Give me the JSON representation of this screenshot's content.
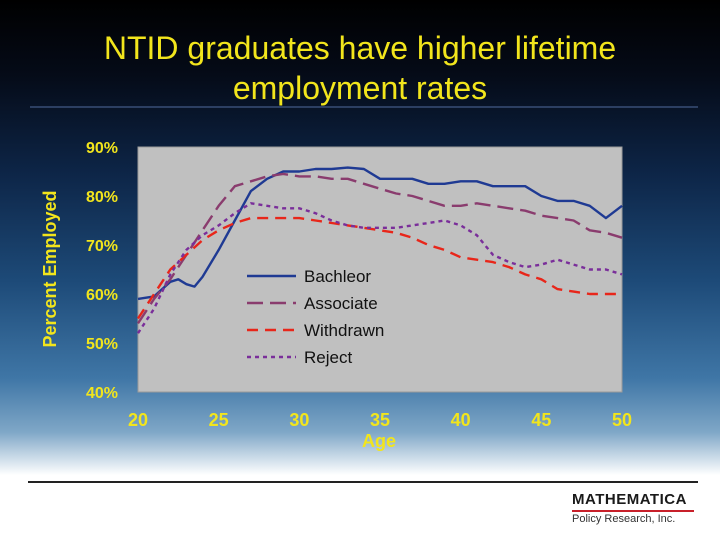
{
  "slide": {
    "title_line1": "NTID graduates have higher lifetime",
    "title_line2": "employment rates",
    "logo_main": "MATHEMATICA",
    "logo_sub": "Policy Research, Inc.",
    "logo_accent_color": "#c8202a",
    "title_color": "#f2e51c"
  },
  "chart_data": {
    "type": "line",
    "title": "",
    "xlabel": "Age",
    "ylabel": "Percent Employed",
    "xlim": [
      20,
      50
    ],
    "ylim": [
      40,
      90
    ],
    "x_ticks": [
      "20",
      "25",
      "30",
      "35",
      "40",
      "45",
      "50"
    ],
    "y_ticks": [
      "40%",
      "50%",
      "60%",
      "70%",
      "80%",
      "90%"
    ],
    "grid": false,
    "legend_position": "center-left",
    "plot_background": "#c0c0c0",
    "label_color": "#f2e51c",
    "series": [
      {
        "name": "Bachleor",
        "color": "#1f3a93",
        "dash": "solid",
        "x": [
          20,
          21,
          22,
          22.5,
          23,
          23.5,
          24,
          25,
          26,
          27,
          28,
          29,
          30,
          31,
          32,
          33,
          34,
          35,
          36,
          37,
          38,
          39,
          40,
          41,
          42,
          43,
          44,
          45,
          46,
          47,
          48,
          49,
          50
        ],
        "y": [
          59,
          59.5,
          62.5,
          63,
          62,
          61.5,
          63.5,
          69,
          75,
          81,
          83.5,
          85,
          85,
          85.5,
          85.5,
          85.8,
          85.5,
          83.5,
          83.5,
          83.5,
          82.5,
          82.5,
          83,
          83,
          82,
          82,
          82,
          80,
          79,
          79,
          78,
          75.5,
          78
        ]
      },
      {
        "name": "Associate",
        "color": "#8a3c6e",
        "dash": "long",
        "x": [
          20,
          21,
          22,
          23,
          24,
          25,
          26,
          27,
          28,
          29,
          30,
          31,
          32,
          33,
          34,
          35,
          36,
          37,
          38,
          39,
          40,
          41,
          42,
          43,
          44,
          45,
          46,
          47,
          48,
          49,
          50
        ],
        "y": [
          54,
          59,
          63,
          68,
          73,
          78,
          82,
          83,
          84,
          84.5,
          84,
          84,
          83.5,
          83.5,
          82.5,
          81.5,
          80.5,
          80,
          79,
          78,
          78,
          78.5,
          78,
          77.5,
          77,
          76,
          75.5,
          75,
          73,
          72.5,
          71.5
        ]
      },
      {
        "name": "Withdrawn",
        "color": "#e8261a",
        "dash": "medium",
        "x": [
          20,
          21,
          22,
          23,
          24,
          25,
          26,
          27,
          28,
          29,
          30,
          31,
          32,
          33,
          34,
          35,
          36,
          37,
          38,
          39,
          40,
          41,
          42,
          43,
          44,
          45,
          46,
          47,
          48,
          49,
          50
        ],
        "y": [
          55,
          60,
          65,
          68,
          71,
          73,
          74.5,
          75.5,
          75.5,
          75.5,
          75.5,
          75,
          74.5,
          74,
          73.5,
          73,
          72.5,
          71.5,
          70,
          69,
          67.5,
          67,
          66.5,
          65.5,
          64,
          63,
          61,
          60.5,
          60,
          60,
          60
        ]
      },
      {
        "name": "Reject",
        "color": "#7a2e9a",
        "dash": "dotted",
        "x": [
          20,
          21,
          22,
          23,
          24,
          25,
          26,
          27,
          28,
          29,
          30,
          31,
          32,
          33,
          34,
          35,
          36,
          37,
          38,
          39,
          40,
          41,
          42,
          43,
          44,
          45,
          46,
          47,
          48,
          49,
          50
        ],
        "y": [
          52,
          57,
          64,
          69,
          72,
          74,
          76.5,
          78.5,
          78,
          77.5,
          77.5,
          76.5,
          75,
          74,
          73.5,
          73.5,
          73.5,
          74,
          74.5,
          75,
          74,
          72,
          68,
          66.5,
          65.5,
          66,
          67,
          66,
          65,
          65,
          64
        ]
      }
    ]
  }
}
